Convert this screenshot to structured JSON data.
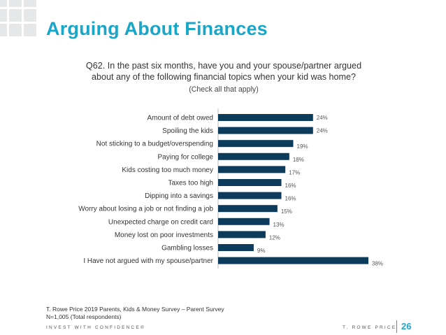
{
  "slide": {
    "title": "Arguing About Finances",
    "question_line1": "Q62. In the past six months, have you and your spouse/partner argued",
    "question_line2": "about any of the following financial topics when your kid was home?",
    "question_note": "(Check all that apply)",
    "source": "T. Rowe Price 2019 Parents, Kids & Money Survey – Parent Survey",
    "sample": "N=1,005 (Total respondents)",
    "tagline": "INVEST WITH CONFIDENCE®",
    "brand": "T. ROWE PRICE",
    "page_number": "26"
  },
  "colors": {
    "title": "#1aa6c8",
    "bar": "#0d3b5c",
    "deco": "#e6e7e8"
  },
  "chart_data": {
    "type": "bar",
    "orientation": "horizontal",
    "categories": [
      "Amount of debt owed",
      "Spoiling the kids",
      "Not sticking to a budget/overspending",
      "Paying for college",
      "Kids costing too much money",
      "Taxes too high",
      "Dipping into a savings",
      "Worry about losing a job or not finding a job",
      "Unexpected charge on credit card",
      "Money lost on poor investments",
      "Gambling losses",
      "I Have not argued with my spouse/partner"
    ],
    "values": [
      24,
      24,
      19,
      18,
      17,
      16,
      16,
      15,
      13,
      12,
      9,
      38
    ],
    "data_labels": [
      "24%",
      "24%",
      "19%",
      "18%",
      "17%",
      "16%",
      "16%",
      "15%",
      "13%",
      "12%",
      "9%",
      "38%"
    ],
    "xlim": [
      0,
      40
    ],
    "grid": false,
    "legend": "none"
  }
}
